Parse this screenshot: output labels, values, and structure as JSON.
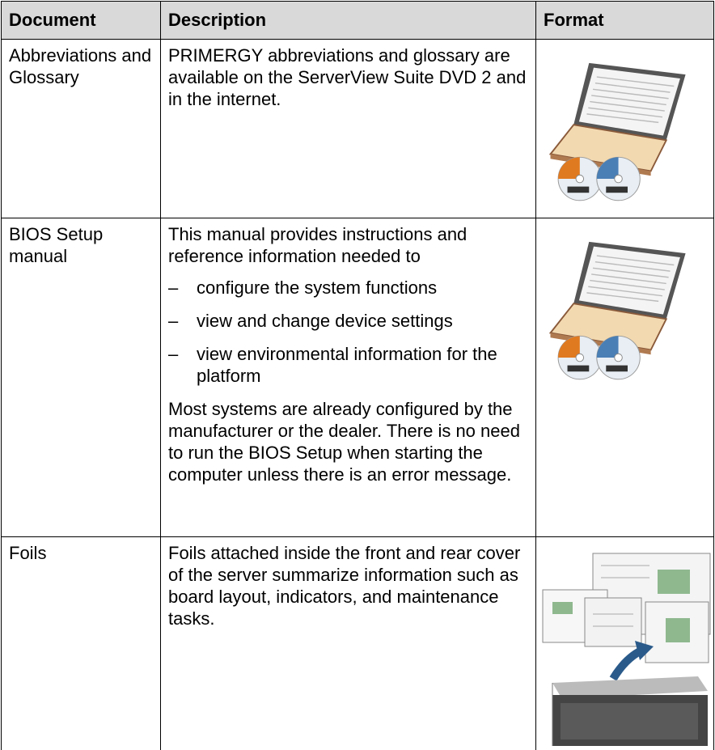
{
  "table": {
    "header": [
      "Document",
      "Description",
      "Format"
    ],
    "rows": [
      {
        "document": "Abbreviations and Glossary",
        "description": [
          "PRIMERGY abbreviations and glossary are available on the ServerView Suite DVD 2 and in the internet."
        ]
      },
      {
        "document": "BIOS Setup manual",
        "description": [
          "This manual provides instructions and reference information needed to"
        ],
        "bullets": [
          "configure the system functions",
          "view and change device settings",
          "view environmental information for the platform"
        ],
        "closing": [
          "Most systems are already configured by the manufacturer or the dealer. There is no need to run the BIOS Setup when starting the computer unless there is an error message."
        ]
      },
      {
        "document": "Foils",
        "description": [
          "Foils attached inside the front and rear cover of the server summarize information such as board layout, indicators, and maintenance tasks."
        ]
      }
    ]
  }
}
